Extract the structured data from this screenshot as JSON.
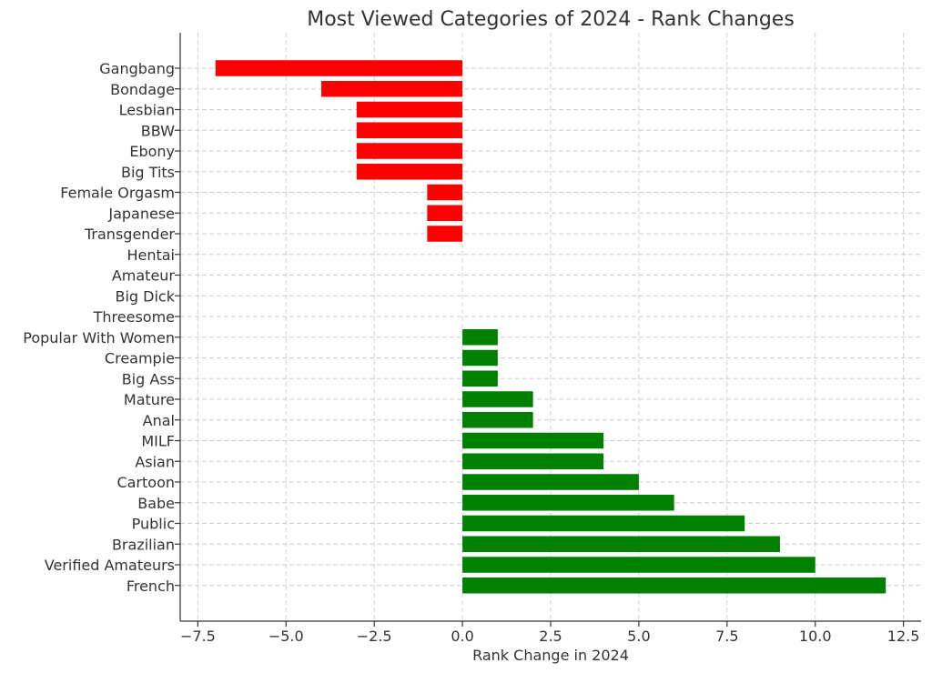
{
  "chart_data": {
    "type": "bar",
    "orientation": "horizontal",
    "title": "Most Viewed Categories of 2024 - Rank Changes",
    "xlabel": "Rank Change in 2024",
    "ylabel": "",
    "xlim": [
      -8,
      13
    ],
    "xticks": [
      -7.5,
      -5.0,
      -2.5,
      0.0,
      2.5,
      5.0,
      7.5,
      10.0,
      12.5
    ],
    "xtick_labels": [
      "−7.5",
      "−5.0",
      "−2.5",
      "0.0",
      "2.5",
      "5.0",
      "7.5",
      "10.0",
      "12.5"
    ],
    "grid": true,
    "colors": {
      "negative": "#ff0000",
      "positive": "#008000"
    },
    "categories": [
      "Gangbang",
      "Bondage",
      "Lesbian",
      "BBW",
      "Ebony",
      "Big Tits",
      "Female Orgasm",
      "Japanese",
      "Transgender",
      "Hentai",
      "Amateur",
      "Big Dick",
      "Threesome",
      "Popular With Women",
      "Creampie",
      "Big Ass",
      "Mature",
      "Anal",
      "MILF",
      "Asian",
      "Cartoon",
      "Babe",
      "Public",
      "Brazilian",
      "Verified Amateurs",
      "French"
    ],
    "values": [
      -7,
      -4,
      -3,
      -3,
      -3,
      -3,
      -1,
      -1,
      -1,
      0,
      0,
      0,
      0,
      1,
      1,
      1,
      2,
      2,
      4,
      4,
      5,
      6,
      8,
      9,
      10,
      12
    ]
  }
}
